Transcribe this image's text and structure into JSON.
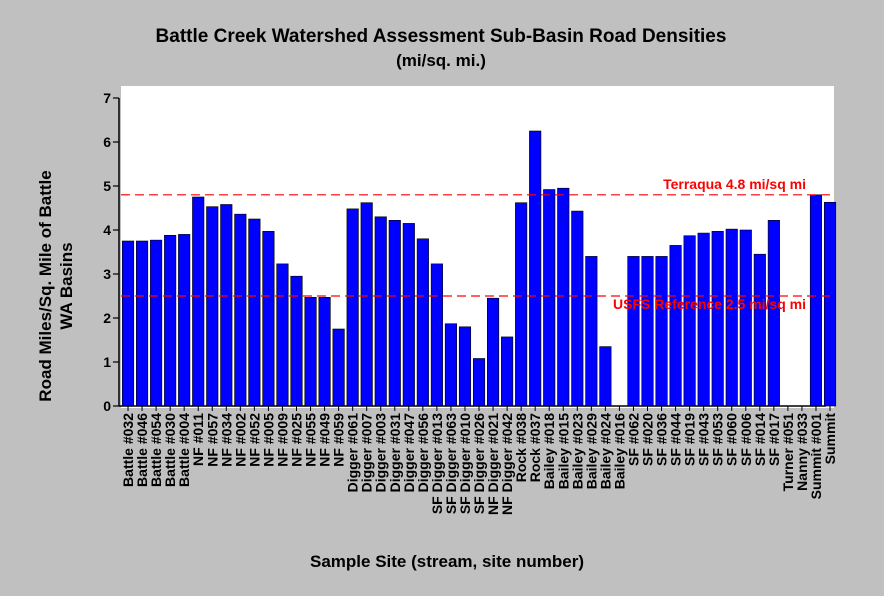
{
  "chart_data": {
    "type": "bar",
    "title": "Battle Creek Watershed Assessment Sub-Basin Road Densities",
    "subtitle": "(mi/sq. mi.)",
    "xlabel": "Sample Site (stream, site number)",
    "ylabel_line1": "Road Miles/Sq. Mile of Battle",
    "ylabel_line2": "WA Basins",
    "ylim": [
      0,
      7
    ],
    "yticks": [
      "0",
      "1",
      "2",
      "3",
      "4",
      "5",
      "6",
      "7"
    ],
    "grid": false,
    "colors": {
      "bar": "#0000ff",
      "reference_line": "#ff0000",
      "plot_background": "#ffffff",
      "figure_background": "#c0c0c0"
    },
    "categories": [
      "Battle #032",
      "Battle #046",
      "Battle #054",
      "Battle #030",
      "Battle #004",
      "NF #011",
      "NF #057",
      "NF #034",
      "NF #002",
      "NF #052",
      "NF #005",
      "NF #009",
      "NF #025",
      "NF #055",
      "NF #049",
      "NF #059",
      "Digger #061",
      "Digger #007",
      "Digger #003",
      "Digger #031",
      "Digger #047",
      "Digger #056",
      "SF Digger #013",
      "SF Digger #063",
      "SF Digger #010",
      "SF Digger #026",
      "NF Digger #021",
      "NF Digger #042",
      "Rock #038",
      "Rock #037",
      "Bailey #018",
      "Bailey #015",
      "Bailey #023",
      "Bailey #029",
      "Bailey #024",
      "Bailey #016",
      "SF #062",
      "SF #020",
      "SF #036",
      "SF #044",
      "SF #019",
      "SF #043",
      "SF #053",
      "SF #060",
      "SF #006",
      "SF #014",
      "SF #017",
      "Turner #051",
      "Nanny #033",
      "Summit #001",
      "Summit"
    ],
    "values": [
      3.75,
      3.75,
      3.77,
      3.88,
      3.9,
      4.75,
      4.53,
      4.58,
      4.36,
      4.25,
      3.97,
      3.23,
      2.95,
      2.47,
      2.47,
      1.75,
      4.48,
      4.62,
      4.3,
      4.22,
      4.15,
      3.8,
      3.23,
      1.87,
      1.8,
      1.08,
      2.45,
      1.57,
      4.62,
      6.25,
      4.92,
      4.95,
      4.43,
      3.4,
      1.35,
      null,
      3.4,
      3.4,
      3.4,
      3.65,
      3.87,
      3.93,
      3.97,
      4.02,
      4.0,
      3.45,
      4.22,
      null,
      null,
      4.8,
      4.63
    ],
    "reference_lines": [
      {
        "value": 4.8,
        "label": "Terraqua 4.8 mi/sq mi"
      },
      {
        "value": 2.5,
        "label": "USFS Reference 2.5 mi/sq mi"
      }
    ]
  }
}
